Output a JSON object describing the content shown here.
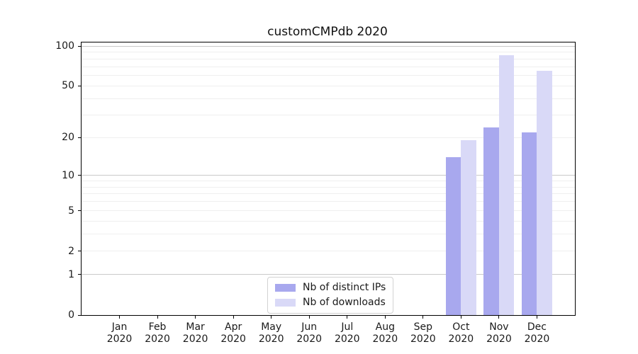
{
  "chart_data": {
    "type": "bar",
    "title": "customCMPdb 2020",
    "categories": [
      "Jan 2020",
      "Feb 2020",
      "Mar 2020",
      "Apr 2020",
      "May 2020",
      "Jun 2020",
      "Jul 2020",
      "Aug 2020",
      "Sep 2020",
      "Oct 2020",
      "Nov 2020",
      "Dec 2020"
    ],
    "series": [
      {
        "name": "Nb of distinct IPs",
        "color": "#a8a8ee",
        "values": [
          null,
          null,
          null,
          null,
          null,
          null,
          null,
          null,
          null,
          14,
          24,
          22
        ]
      },
      {
        "name": "Nb of downloads",
        "color": "#d9d9f7",
        "values": [
          null,
          null,
          null,
          null,
          null,
          null,
          null,
          null,
          null,
          19,
          85,
          65
        ]
      }
    ],
    "xlabel": "",
    "ylabel": "",
    "yscale": "log1p",
    "ylim": [
      0,
      106
    ],
    "yticks": [
      0,
      1,
      2,
      5,
      10,
      20,
      50,
      100
    ],
    "gridlines": {
      "major": [
        1,
        10,
        100
      ],
      "minor": [
        2,
        3,
        4,
        5,
        6,
        7,
        8,
        9,
        20,
        30,
        40,
        50,
        60,
        70,
        80,
        90
      ]
    },
    "grid": "on",
    "legend_position": "lower center",
    "colors": {
      "major_grid": "#c9c9c9",
      "minor_grid": "#efefef",
      "axis": "#000000",
      "text": "#1a1a1a",
      "background": "#ffffff"
    }
  }
}
